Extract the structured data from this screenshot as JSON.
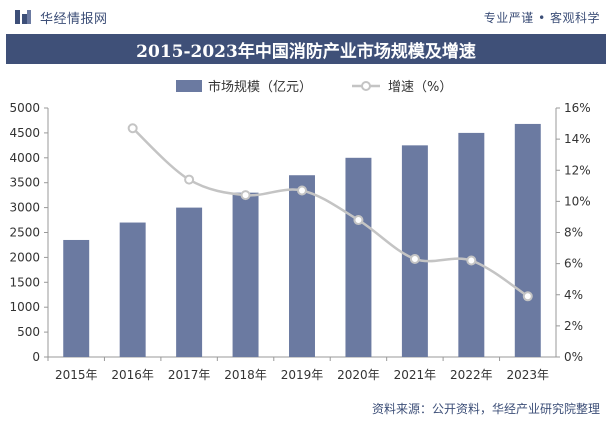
{
  "header": {
    "brand": "华经情报网",
    "tagline": "专业严谨 • 客观科学"
  },
  "title": "2015-2023年中国消防产业市场规模及增速",
  "source": "资料来源：公开资料，华经产业研究院整理",
  "colors": {
    "bar": "#6b7aa1",
    "line": "#c4c4c4",
    "title_bg": "#3f5078",
    "brand": "#3d4f78"
  },
  "chart_data": {
    "type": "bar+line",
    "title": "2015-2023年中国消防产业市场规模及增速",
    "categories": [
      "2015年",
      "2016年",
      "2017年",
      "2018年",
      "2019年",
      "2020年",
      "2021年",
      "2022年",
      "2023年"
    ],
    "series": [
      {
        "name": "市场规模（亿元）",
        "type": "bar",
        "axis": "left",
        "values": [
          2350,
          2700,
          3000,
          3300,
          3650,
          4000,
          4250,
          4500,
          4680
        ]
      },
      {
        "name": "增速（%）",
        "type": "line",
        "axis": "right",
        "values": [
          null,
          14.7,
          11.4,
          10.4,
          10.7,
          8.8,
          6.3,
          6.2,
          3.9
        ]
      }
    ],
    "y_left": {
      "min": 0,
      "max": 5000,
      "ticks": [
        "0",
        "500",
        "1000",
        "1500",
        "2000",
        "2500",
        "3000",
        "3500",
        "4000",
        "4500",
        "5000"
      ]
    },
    "y_right": {
      "min": 0,
      "max": 16,
      "ticks": [
        "0%",
        "2%",
        "4%",
        "6%",
        "8%",
        "10%",
        "12%",
        "14%",
        "16%"
      ]
    },
    "legend": [
      "市场规模（亿元）",
      "增速（%）"
    ],
    "legend_position": "top",
    "grid": false
  }
}
